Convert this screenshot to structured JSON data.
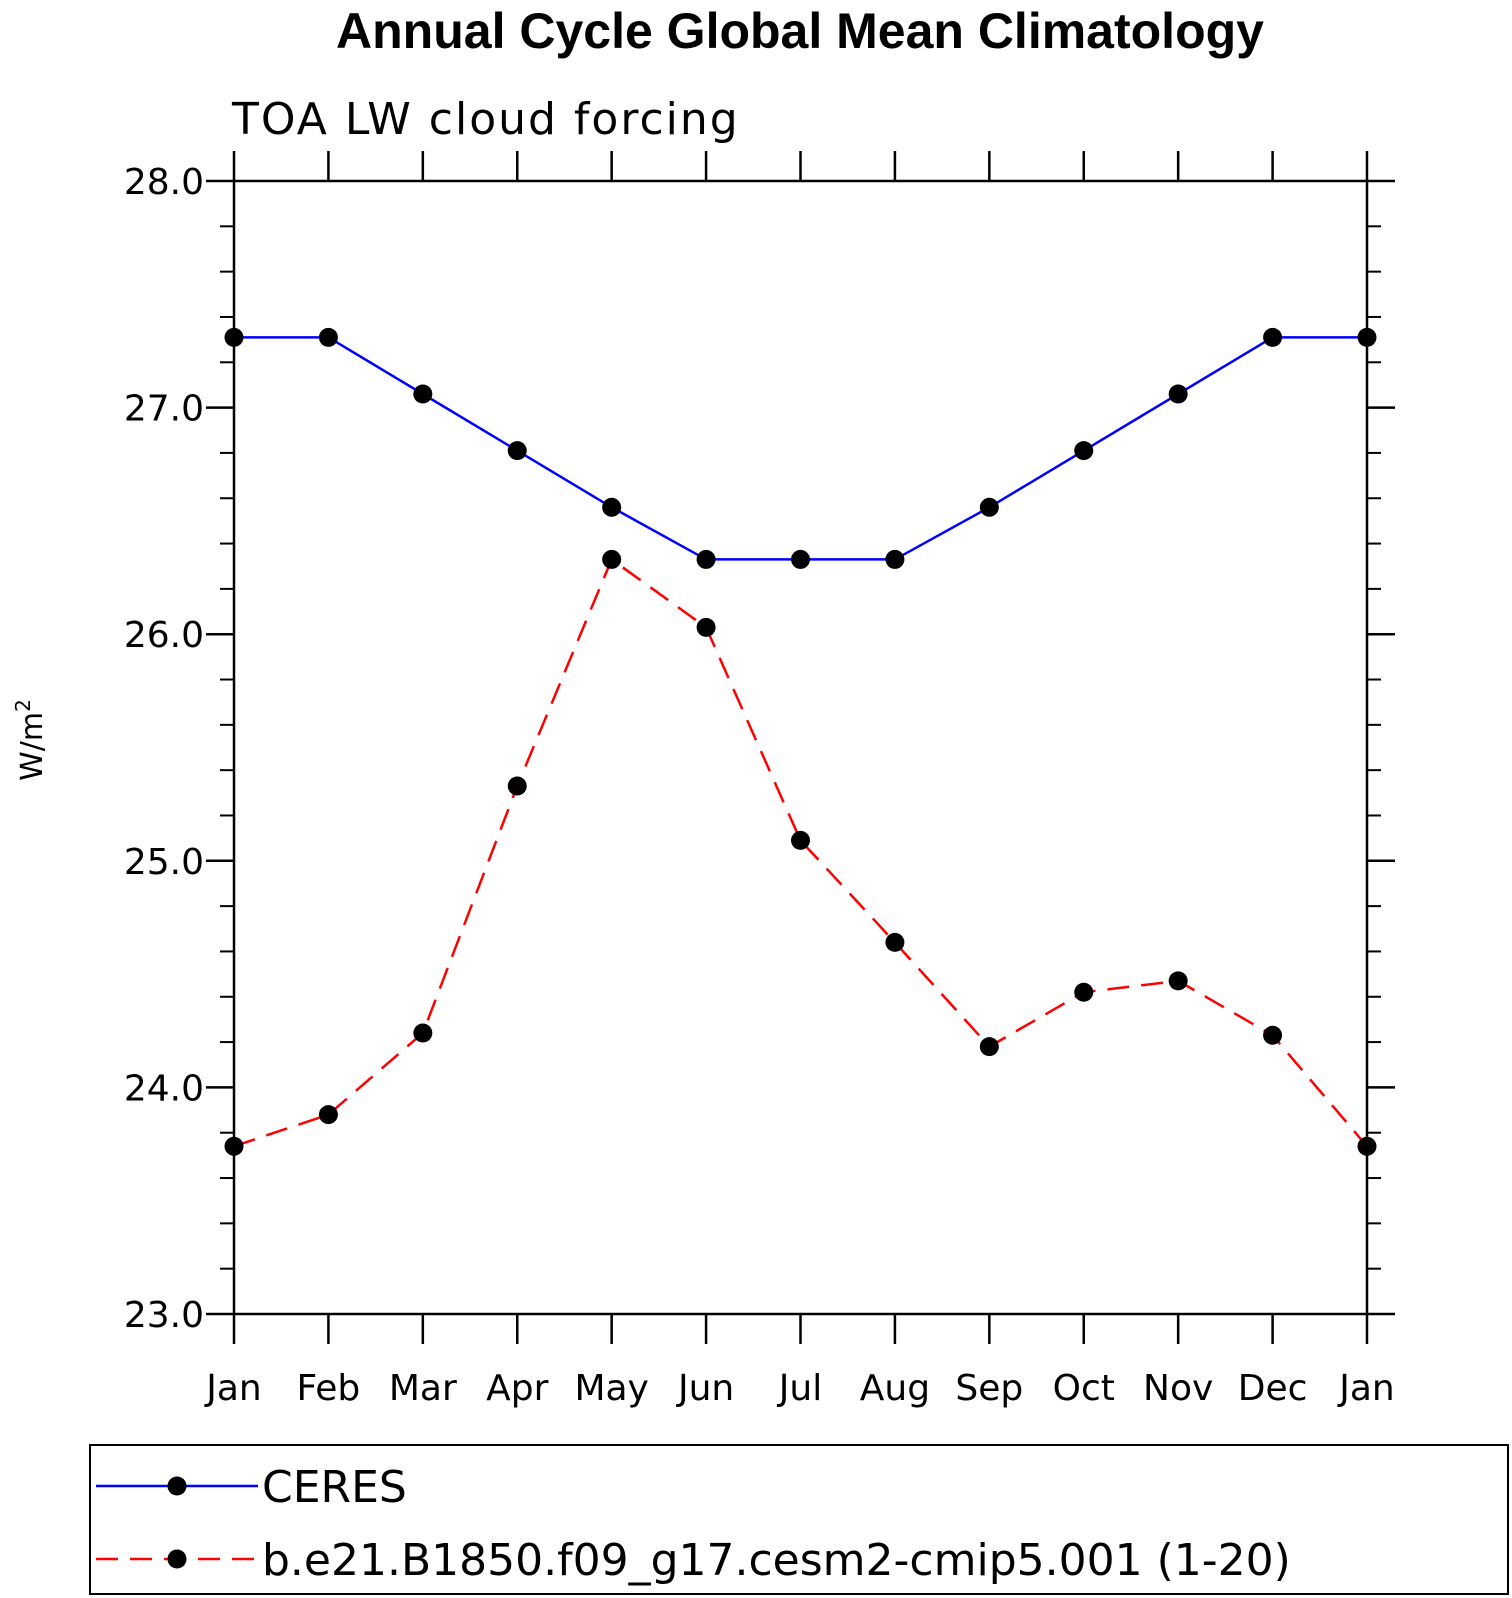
{
  "chart_data": {
    "type": "line",
    "title": "Annual Cycle Global Mean Climatology",
    "subtitle": "TOA LW cloud forcing",
    "ylabel": "W/m",
    "ylabel_sup": "2",
    "ylim": [
      23.0,
      28.0
    ],
    "y_ticks": [
      "23.0",
      "24.0",
      "25.0",
      "26.0",
      "27.0",
      "28.0"
    ],
    "y_tick_values": [
      23.0,
      24.0,
      25.0,
      26.0,
      27.0,
      28.0
    ],
    "y_minor_step": 0.2,
    "categories": [
      "Jan",
      "Feb",
      "Mar",
      "Apr",
      "May",
      "Jun",
      "Jul",
      "Aug",
      "Sep",
      "Oct",
      "Nov",
      "Dec",
      "Jan"
    ],
    "legend_position": "bottom",
    "series": [
      {
        "name": "CERES",
        "color": "#0000ff",
        "dash": "solid",
        "values": [
          27.31,
          27.31,
          27.06,
          26.81,
          26.56,
          26.33,
          26.33,
          26.33,
          26.56,
          26.81,
          27.06,
          27.31,
          27.31
        ]
      },
      {
        "name": "b.e21.B1850.f09_g17.cesm2-cmip5.001 (1-20)",
        "color": "#ff0000",
        "dash": "dashed",
        "values": [
          23.74,
          23.88,
          24.24,
          25.33,
          26.33,
          26.03,
          25.09,
          24.64,
          24.18,
          24.42,
          24.47,
          24.23,
          23.74
        ]
      }
    ]
  }
}
